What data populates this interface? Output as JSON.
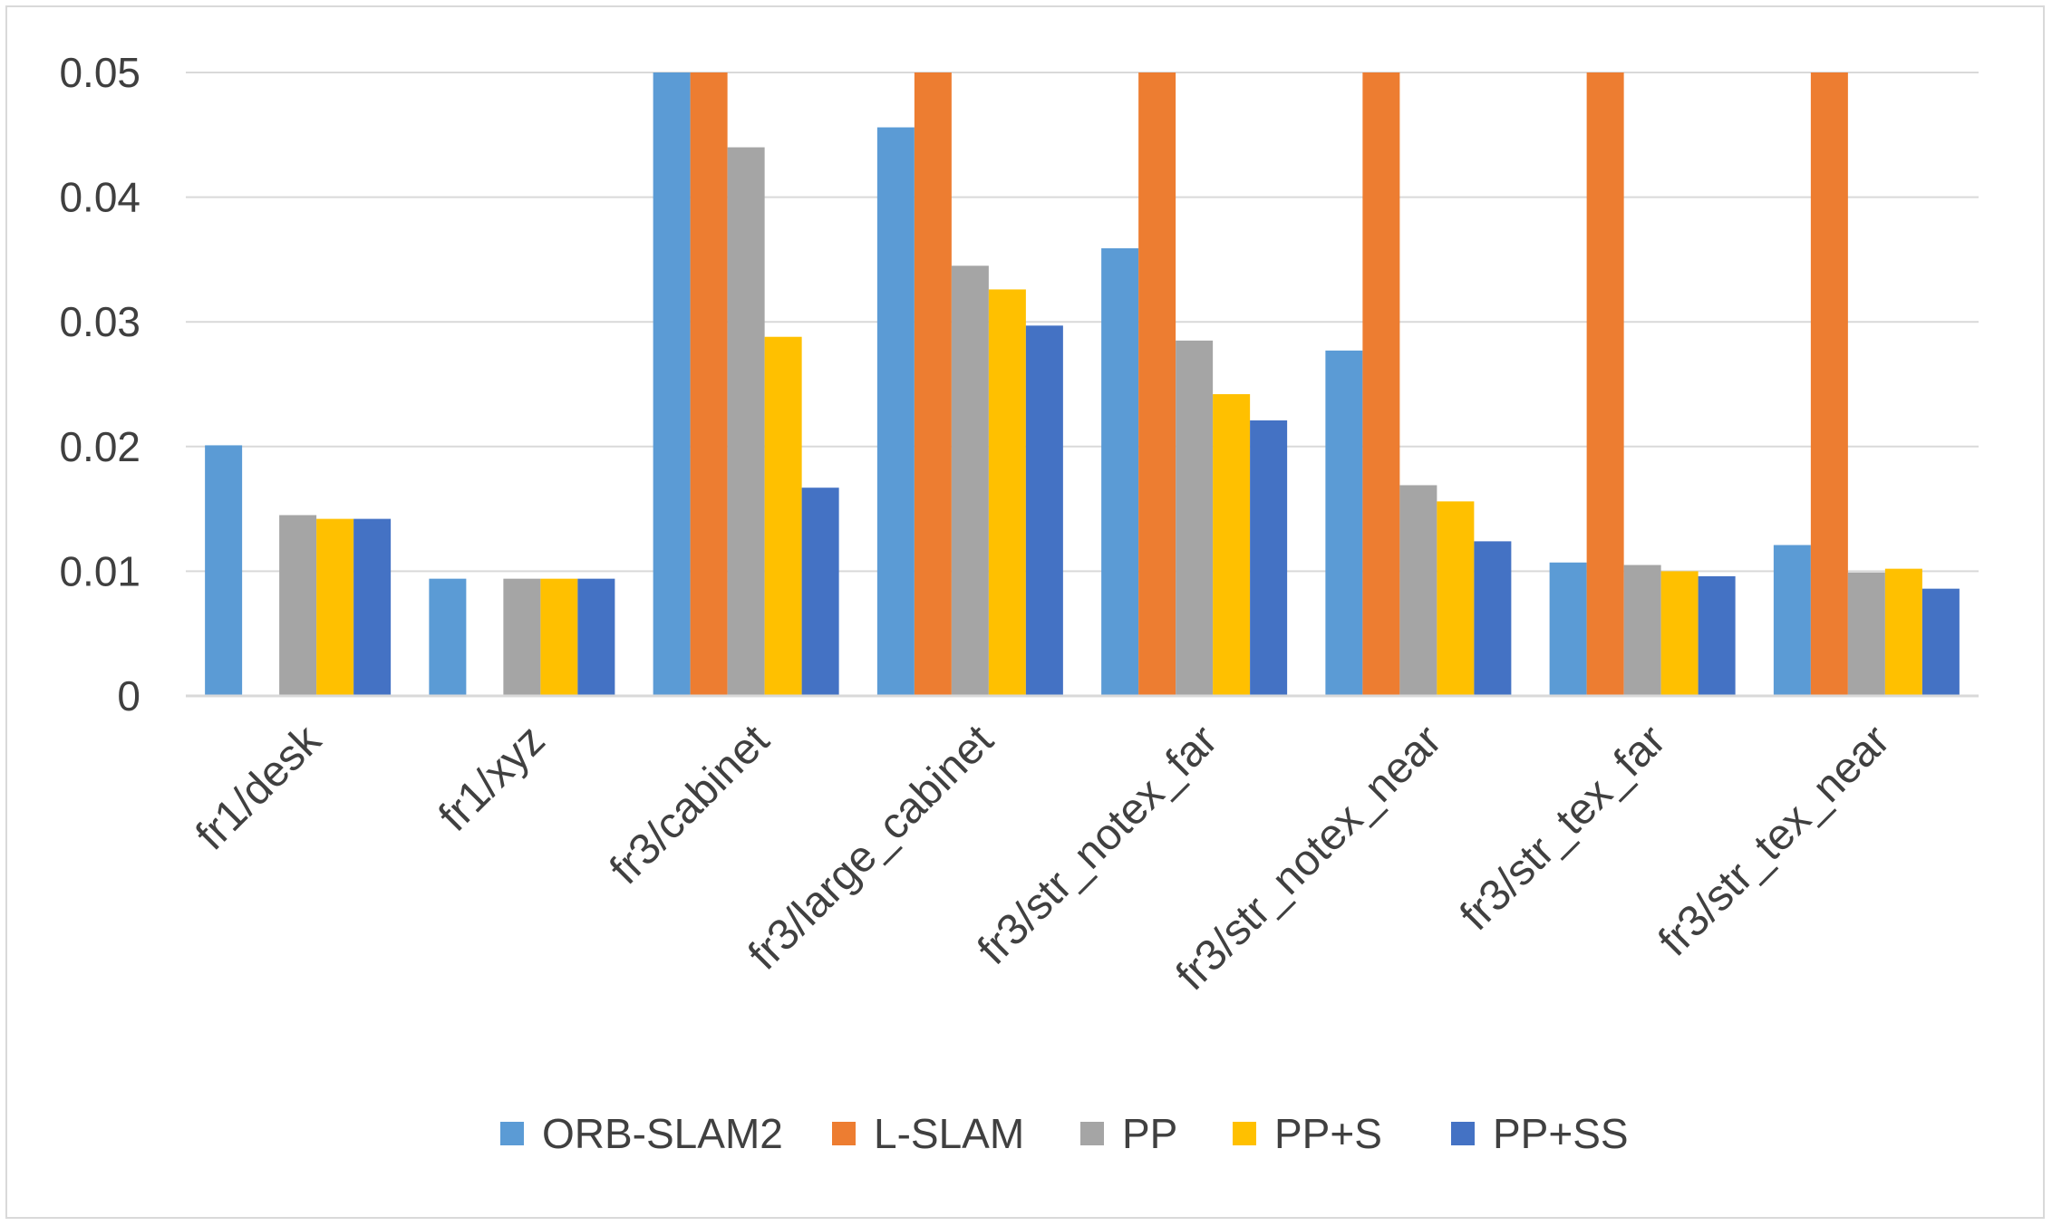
{
  "chart_data": {
    "type": "bar",
    "title": "",
    "xlabel": "",
    "ylabel": "",
    "ylim": [
      0,
      0.05
    ],
    "yticks": [
      0,
      0.01,
      0.02,
      0.03,
      0.04,
      0.05
    ],
    "ytick_labels": [
      "0",
      "0.01",
      "0.02",
      "0.03",
      "0.04",
      "0.05"
    ],
    "grid": true,
    "legend_position": "bottom",
    "categories": [
      "fr1/desk",
      "fr1/xyz",
      "fr3/cabinet",
      "fr3/large_cabinet",
      "fr3/str_notex_far",
      "fr3/str_notex_near",
      "fr3/str_tex_far",
      "fr3/str_tex_near"
    ],
    "series": [
      {
        "name": "ORB-SLAM2",
        "color": "#5b9bd5",
        "values": [
          0.0201,
          0.0094,
          0.05,
          0.0456,
          0.0359,
          0.0277,
          0.0107,
          0.0121
        ]
      },
      {
        "name": "L-SLAM",
        "color": "#ed7d31",
        "values": [
          0,
          0,
          0.05,
          0.05,
          0.05,
          0.05,
          0.05,
          0.05
        ]
      },
      {
        "name": "PP",
        "color": "#a5a5a5",
        "values": [
          0.0145,
          0.0094,
          0.044,
          0.0345,
          0.0285,
          0.0169,
          0.0105,
          0.0099
        ]
      },
      {
        "name": "PP+S",
        "color": "#ffc000",
        "values": [
          0.0142,
          0.0094,
          0.0288,
          0.0326,
          0.0242,
          0.0156,
          0.01,
          0.0102
        ]
      },
      {
        "name": "PP+SS",
        "color": "#4472c4",
        "values": [
          0.0142,
          0.0094,
          0.0167,
          0.0297,
          0.0221,
          0.0124,
          0.0096,
          0.0086
        ]
      }
    ]
  }
}
